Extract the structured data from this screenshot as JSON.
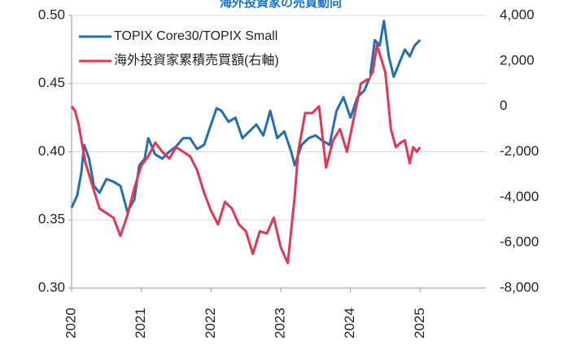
{
  "chart_data": {
    "type": "line",
    "title": "海外投資家の売買動向",
    "xlim": [
      2020,
      2026
    ],
    "xticks": [
      2020,
      2021,
      2022,
      2023,
      2024,
      2025
    ],
    "ylim": [
      0.3,
      0.5
    ],
    "yticks": [
      {
        "value": 0.3,
        "label": "0.30"
      },
      0.35,
      {
        "value": 0.4,
        "label": "0.40"
      },
      0.45,
      {
        "value": 0.5,
        "label": "0.50"
      }
    ],
    "y2lim": [
      -8000,
      4000
    ],
    "y2ticks": [
      {
        "value": -8000,
        "label": "-8,000"
      },
      {
        "value": -6000,
        "label": "-6,000"
      },
      {
        "value": -4000,
        "label": "-4,000"
      },
      {
        "value": -2000,
        "label": "-2,000"
      },
      0,
      {
        "value": 2000,
        "label": "2,000"
      },
      {
        "value": 4000,
        "label": "4,000"
      }
    ],
    "grid": true,
    "legend": "upper left",
    "series": [
      {
        "name": "TOPIX Core30/TOPIX Small",
        "color": "#1f6fb8",
        "x": [
          2020.0,
          2020.08,
          2020.14,
          2020.18,
          2020.25,
          2020.32,
          2020.4,
          2020.5,
          2020.6,
          2020.7,
          2020.8,
          2020.9,
          2020.97,
          2021.05,
          2021.1,
          2021.2,
          2021.3,
          2021.4,
          2021.5,
          2021.6,
          2021.7,
          2021.8,
          2021.9,
          2022.0,
          2022.08,
          2022.15,
          2022.25,
          2022.35,
          2022.45,
          2022.55,
          2022.65,
          2022.75,
          2022.85,
          2022.95,
          2023.05,
          2023.15,
          2023.2,
          2023.3,
          2023.4,
          2023.5,
          2023.6,
          2023.7,
          2023.8,
          2023.9,
          2024.0,
          2024.1,
          2024.2,
          2024.28,
          2024.35,
          2024.42,
          2024.48,
          2024.55,
          2024.62,
          2024.7,
          2024.78,
          2024.85,
          2024.92,
          2025.0
        ],
        "values": [
          0.359,
          0.368,
          0.385,
          0.405,
          0.395,
          0.375,
          0.37,
          0.38,
          0.378,
          0.375,
          0.356,
          0.365,
          0.39,
          0.395,
          0.41,
          0.398,
          0.395,
          0.4,
          0.404,
          0.41,
          0.41,
          0.402,
          0.405,
          0.42,
          0.432,
          0.43,
          0.422,
          0.425,
          0.41,
          0.415,
          0.42,
          0.412,
          0.43,
          0.41,
          0.415,
          0.4,
          0.39,
          0.405,
          0.41,
          0.412,
          0.408,
          0.405,
          0.43,
          0.44,
          0.425,
          0.44,
          0.445,
          0.455,
          0.482,
          0.478,
          0.496,
          0.47,
          0.455,
          0.465,
          0.475,
          0.47,
          0.478,
          0.482
        ]
      },
      {
        "name": "海外投資家累積売買額(右軸)",
        "color": "#e8344e",
        "axis": "y2",
        "x": [
          2020.0,
          2020.05,
          2020.1,
          2020.2,
          2020.3,
          2020.4,
          2020.5,
          2020.6,
          2020.7,
          2020.8,
          2020.9,
          2021.0,
          2021.1,
          2021.2,
          2021.3,
          2021.4,
          2021.5,
          2021.6,
          2021.7,
          2021.8,
          2021.9,
          2022.0,
          2022.1,
          2022.2,
          2022.3,
          2022.4,
          2022.5,
          2022.6,
          2022.7,
          2022.8,
          2022.9,
          2023.0,
          2023.1,
          2023.2,
          2023.25,
          2023.35,
          2023.45,
          2023.55,
          2023.65,
          2023.75,
          2023.85,
          2023.95,
          2024.05,
          2024.15,
          2024.25,
          2024.32,
          2024.38,
          2024.45,
          2024.5,
          2024.58,
          2024.65,
          2024.72,
          2024.78,
          2024.85,
          2024.9,
          2024.95,
          2025.0
        ],
        "values": [
          0,
          -200,
          -800,
          -2500,
          -3500,
          -4500,
          -4700,
          -4900,
          -5700,
          -4800,
          -3600,
          -2600,
          -2200,
          -1600,
          -2000,
          -2300,
          -1800,
          -2000,
          -2200,
          -2800,
          -3800,
          -4600,
          -5200,
          -4200,
          -4500,
          -5200,
          -5500,
          -6500,
          -5500,
          -5600,
          -4900,
          -6200,
          -6900,
          -4000,
          -2000,
          -300,
          -300,
          0,
          -2700,
          -1500,
          -1000,
          -2000,
          -500,
          1000,
          1200,
          1500,
          2700,
          2000,
          1500,
          -1000,
          -1800,
          -1600,
          -1500,
          -2500,
          -1800,
          -2000,
          -1800
        ]
      }
    ]
  }
}
